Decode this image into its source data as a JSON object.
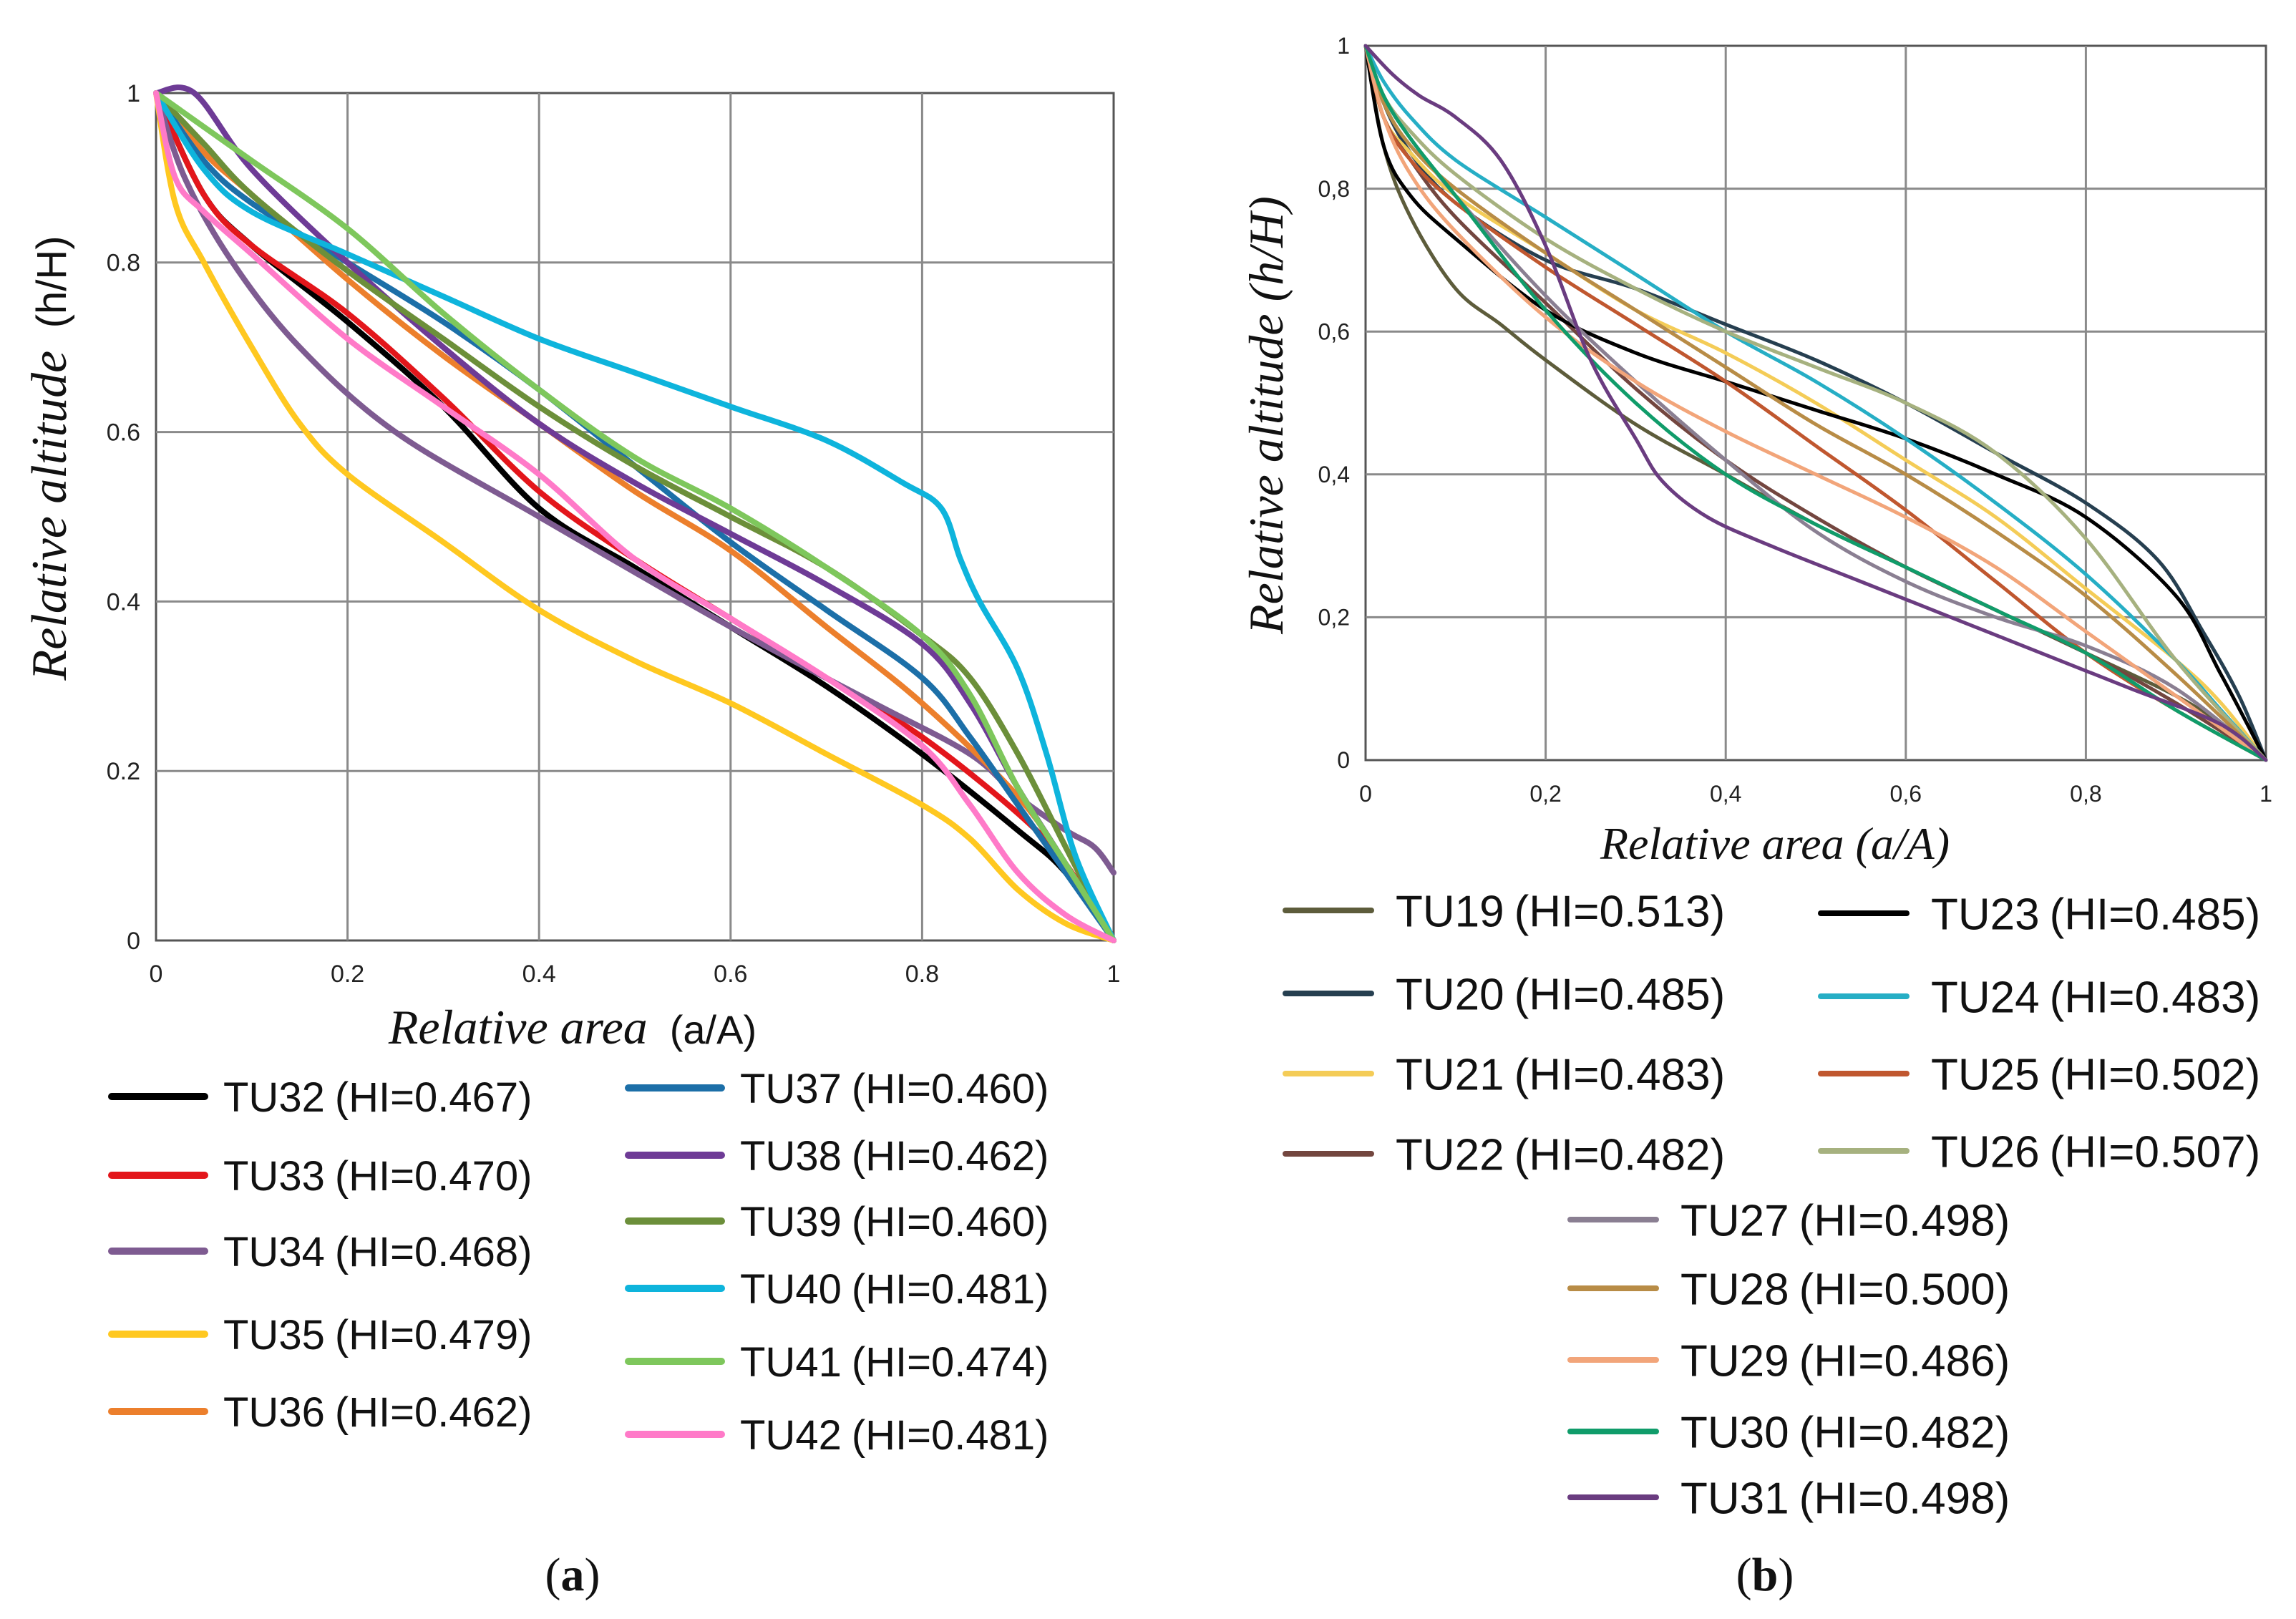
{
  "chart_data": [
    {
      "type": "line",
      "panel_label": "a",
      "xlabel_italic": "Relative area",
      "xlabel_unit": "(a/A)",
      "ylabel_italic": "Relative altitude",
      "ylabel_unit": "(h/H)",
      "xlim": [
        0,
        1
      ],
      "ylim": [
        0,
        1
      ],
      "xticks": [
        "0",
        "0.2",
        "0.4",
        "0.6",
        "0.8",
        "1"
      ],
      "yticks": [
        "0",
        "0.2",
        "0.4",
        "0.6",
        "0.8",
        "1"
      ],
      "grid": true,
      "legend_placement": "bottom",
      "series": [
        {
          "name": "TU32",
          "hi": "(HI=0.467)",
          "color": "#000000",
          "x": [
            0,
            0.05,
            0.1,
            0.2,
            0.3,
            0.4,
            0.5,
            0.6,
            0.7,
            0.8,
            0.9,
            0.95,
            1
          ],
          "y": [
            1,
            0.88,
            0.82,
            0.73,
            0.63,
            0.51,
            0.44,
            0.37,
            0.3,
            0.22,
            0.13,
            0.08,
            0
          ]
        },
        {
          "name": "TU33",
          "hi": "(HI=0.470)",
          "color": "#e3161b",
          "x": [
            0,
            0.05,
            0.1,
            0.2,
            0.3,
            0.4,
            0.5,
            0.6,
            0.7,
            0.8,
            0.9,
            0.95,
            1
          ],
          "y": [
            1,
            0.88,
            0.82,
            0.74,
            0.64,
            0.53,
            0.45,
            0.38,
            0.31,
            0.24,
            0.15,
            0.09,
            0
          ]
        },
        {
          "name": "TU34",
          "hi": "(HI=0.468)",
          "color": "#7e5b91",
          "x": [
            0,
            0.03,
            0.08,
            0.15,
            0.25,
            0.4,
            0.6,
            0.75,
            0.85,
            0.9,
            0.95,
            0.98,
            1
          ],
          "y": [
            1,
            0.9,
            0.8,
            0.7,
            0.6,
            0.5,
            0.37,
            0.28,
            0.22,
            0.17,
            0.13,
            0.11,
            0.08
          ]
        },
        {
          "name": "TU35",
          "hi": "(HI=0.479)",
          "color": "#ffc820",
          "x": [
            0,
            0.02,
            0.05,
            0.1,
            0.15,
            0.2,
            0.3,
            0.4,
            0.5,
            0.6,
            0.7,
            0.8,
            0.85,
            0.9,
            0.95,
            1
          ],
          "y": [
            1,
            0.87,
            0.8,
            0.7,
            0.61,
            0.55,
            0.47,
            0.39,
            0.33,
            0.28,
            0.22,
            0.16,
            0.12,
            0.06,
            0.02,
            0
          ]
        },
        {
          "name": "TU36",
          "hi": "(HI=0.462)",
          "color": "#ec7f2c",
          "x": [
            0,
            0.05,
            0.1,
            0.2,
            0.3,
            0.4,
            0.5,
            0.6,
            0.7,
            0.8,
            0.9,
            0.95,
            1
          ],
          "y": [
            1,
            0.93,
            0.88,
            0.78,
            0.69,
            0.61,
            0.53,
            0.46,
            0.37,
            0.28,
            0.17,
            0.09,
            0
          ]
        },
        {
          "name": "TU37",
          "hi": "(HI=0.460)",
          "color": "#1c6fa8",
          "x": [
            0,
            0.05,
            0.1,
            0.2,
            0.3,
            0.4,
            0.5,
            0.6,
            0.7,
            0.8,
            0.85,
            0.9,
            0.95,
            1
          ],
          "y": [
            1,
            0.92,
            0.87,
            0.8,
            0.73,
            0.65,
            0.56,
            0.47,
            0.39,
            0.31,
            0.24,
            0.16,
            0.08,
            0
          ]
        },
        {
          "name": "TU38",
          "hi": "(HI=0.462)",
          "color": "#6e3b96",
          "x": [
            0,
            0.04,
            0.1,
            0.2,
            0.3,
            0.4,
            0.5,
            0.6,
            0.7,
            0.8,
            0.85,
            0.9,
            0.95,
            1
          ],
          "y": [
            1,
            1,
            0.91,
            0.8,
            0.7,
            0.61,
            0.54,
            0.48,
            0.42,
            0.35,
            0.28,
            0.18,
            0.09,
            0
          ]
        },
        {
          "name": "TU39",
          "hi": "(HI=0.460)",
          "color": "#6c8f3a",
          "x": [
            0,
            0.05,
            0.1,
            0.2,
            0.3,
            0.4,
            0.5,
            0.6,
            0.7,
            0.8,
            0.85,
            0.9,
            0.95,
            1
          ],
          "y": [
            1,
            0.94,
            0.88,
            0.79,
            0.71,
            0.63,
            0.56,
            0.5,
            0.44,
            0.36,
            0.31,
            0.22,
            0.11,
            0
          ]
        },
        {
          "name": "TU40",
          "hi": "(HI=0.481)",
          "color": "#0eb4dc",
          "x": [
            0,
            0.05,
            0.1,
            0.2,
            0.3,
            0.4,
            0.5,
            0.6,
            0.7,
            0.78,
            0.82,
            0.84,
            0.86,
            0.9,
            0.93,
            0.96,
            1
          ],
          "y": [
            1,
            0.91,
            0.86,
            0.81,
            0.76,
            0.71,
            0.67,
            0.63,
            0.59,
            0.54,
            0.51,
            0.45,
            0.4,
            0.32,
            0.22,
            0.1,
            0
          ]
        },
        {
          "name": "TU41",
          "hi": "(HI=0.474)",
          "color": "#7ec75c",
          "x": [
            0,
            0.05,
            0.1,
            0.2,
            0.3,
            0.4,
            0.5,
            0.6,
            0.7,
            0.8,
            0.85,
            0.9,
            0.95,
            1
          ],
          "y": [
            1,
            0.96,
            0.92,
            0.84,
            0.74,
            0.65,
            0.57,
            0.51,
            0.44,
            0.36,
            0.29,
            0.18,
            0.09,
            0
          ]
        },
        {
          "name": "TU42",
          "hi": "(HI=0.481)",
          "color": "#ff7ac8",
          "x": [
            0,
            0.02,
            0.05,
            0.1,
            0.2,
            0.3,
            0.4,
            0.5,
            0.6,
            0.7,
            0.8,
            0.85,
            0.9,
            0.95,
            1
          ],
          "y": [
            1,
            0.9,
            0.86,
            0.81,
            0.71,
            0.63,
            0.55,
            0.45,
            0.38,
            0.31,
            0.23,
            0.16,
            0.08,
            0.03,
            0
          ]
        }
      ]
    },
    {
      "type": "line",
      "panel_label": "b",
      "xlabel_italic": "Relative area (a/A)",
      "xlabel_unit": "",
      "ylabel_italic": "Relative altitude (h/H)",
      "ylabel_unit": "",
      "xlim": [
        0,
        1
      ],
      "ylim": [
        0,
        1
      ],
      "xticks": [
        "0",
        "0,2",
        "0,4",
        "0,6",
        "0,8",
        "1"
      ],
      "yticks": [
        "0",
        "0,2",
        "0,4",
        "0,6",
        "0,8",
        "1"
      ],
      "grid": true,
      "legend_placement": "bottom",
      "series": [
        {
          "name": "TU19",
          "hi": "(HI=0.513)",
          "color": "#5d5c3b",
          "x": [
            0,
            0.02,
            0.05,
            0.1,
            0.15,
            0.2,
            0.3,
            0.4,
            0.5,
            0.6,
            0.7,
            0.8,
            0.9,
            0.95,
            1
          ],
          "y": [
            1,
            0.86,
            0.76,
            0.66,
            0.61,
            0.56,
            0.47,
            0.4,
            0.33,
            0.27,
            0.21,
            0.15,
            0.09,
            0.05,
            0
          ]
        },
        {
          "name": "TU20",
          "hi": "(HI=0.485)",
          "color": "#263f50",
          "x": [
            0,
            0.02,
            0.05,
            0.1,
            0.2,
            0.3,
            0.4,
            0.5,
            0.6,
            0.7,
            0.8,
            0.88,
            0.93,
            0.97,
            1
          ],
          "y": [
            1,
            0.92,
            0.85,
            0.78,
            0.7,
            0.66,
            0.61,
            0.56,
            0.5,
            0.43,
            0.36,
            0.28,
            0.18,
            0.09,
            0
          ]
        },
        {
          "name": "TU21",
          "hi": "(HI=0.483)",
          "color": "#f4cc57",
          "x": [
            0,
            0.02,
            0.05,
            0.1,
            0.2,
            0.3,
            0.4,
            0.5,
            0.6,
            0.7,
            0.8,
            0.9,
            0.95,
            1
          ],
          "y": [
            1,
            0.9,
            0.85,
            0.79,
            0.71,
            0.63,
            0.57,
            0.5,
            0.42,
            0.34,
            0.24,
            0.14,
            0.08,
            0
          ]
        },
        {
          "name": "TU22",
          "hi": "(HI=0.482)",
          "color": "#73463f",
          "x": [
            0,
            0.02,
            0.05,
            0.1,
            0.2,
            0.3,
            0.4,
            0.5,
            0.6,
            0.7,
            0.8,
            0.9,
            1
          ],
          "y": [
            1,
            0.9,
            0.84,
            0.76,
            0.64,
            0.52,
            0.42,
            0.34,
            0.27,
            0.21,
            0.15,
            0.08,
            0
          ]
        },
        {
          "name": "TU23",
          "hi": "(HI=0.485)",
          "color": "#000000",
          "x": [
            0,
            0.02,
            0.05,
            0.1,
            0.2,
            0.3,
            0.4,
            0.5,
            0.6,
            0.7,
            0.8,
            0.9,
            0.95,
            1
          ],
          "y": [
            1,
            0.86,
            0.79,
            0.73,
            0.63,
            0.57,
            0.53,
            0.49,
            0.45,
            0.4,
            0.34,
            0.23,
            0.12,
            0
          ]
        },
        {
          "name": "TU24",
          "hi": "(HI=0.483)",
          "color": "#26aec5",
          "x": [
            0,
            0.02,
            0.05,
            0.1,
            0.2,
            0.3,
            0.4,
            0.5,
            0.6,
            0.7,
            0.8,
            0.9,
            0.95,
            1
          ],
          "y": [
            1,
            0.95,
            0.9,
            0.84,
            0.76,
            0.68,
            0.6,
            0.53,
            0.45,
            0.36,
            0.26,
            0.14,
            0.07,
            0
          ]
        },
        {
          "name": "TU25",
          "hi": "(HI=0.502)",
          "color": "#c0572f",
          "x": [
            0,
            0.02,
            0.05,
            0.1,
            0.2,
            0.3,
            0.4,
            0.5,
            0.6,
            0.7,
            0.8,
            0.9,
            1
          ],
          "y": [
            1,
            0.9,
            0.84,
            0.78,
            0.69,
            0.61,
            0.53,
            0.44,
            0.35,
            0.25,
            0.15,
            0.07,
            0
          ]
        },
        {
          "name": "TU26",
          "hi": "(HI=0.507)",
          "color": "#a6b17f",
          "x": [
            0,
            0.02,
            0.05,
            0.1,
            0.2,
            0.3,
            0.4,
            0.5,
            0.6,
            0.7,
            0.8,
            0.9,
            1
          ],
          "y": [
            1,
            0.93,
            0.88,
            0.82,
            0.73,
            0.66,
            0.6,
            0.55,
            0.5,
            0.43,
            0.31,
            0.14,
            0
          ]
        },
        {
          "name": "TU27",
          "hi": "(HI=0.498)",
          "color": "#8a7f92",
          "x": [
            0,
            0.02,
            0.05,
            0.1,
            0.2,
            0.3,
            0.4,
            0.5,
            0.6,
            0.7,
            0.8,
            0.9,
            1
          ],
          "y": [
            1,
            0.93,
            0.87,
            0.79,
            0.65,
            0.53,
            0.42,
            0.32,
            0.25,
            0.2,
            0.16,
            0.1,
            0
          ]
        },
        {
          "name": "TU28",
          "hi": "(HI=0.500)",
          "color": "#b88c46",
          "x": [
            0,
            0.02,
            0.05,
            0.1,
            0.2,
            0.3,
            0.4,
            0.5,
            0.6,
            0.7,
            0.8,
            0.9,
            1
          ],
          "y": [
            1,
            0.92,
            0.86,
            0.8,
            0.71,
            0.63,
            0.55,
            0.47,
            0.4,
            0.32,
            0.23,
            0.12,
            0
          ]
        },
        {
          "name": "TU29",
          "hi": "(HI=0.486)",
          "color": "#f2a57a",
          "x": [
            0,
            0.02,
            0.05,
            0.1,
            0.2,
            0.3,
            0.4,
            0.5,
            0.6,
            0.7,
            0.8,
            0.9,
            1
          ],
          "y": [
            1,
            0.9,
            0.82,
            0.74,
            0.62,
            0.53,
            0.46,
            0.4,
            0.34,
            0.27,
            0.18,
            0.09,
            0
          ]
        },
        {
          "name": "TU30",
          "hi": "(HI=0.482)",
          "color": "#109c6a",
          "x": [
            0,
            0.02,
            0.05,
            0.1,
            0.2,
            0.3,
            0.4,
            0.5,
            0.6,
            0.7,
            0.8,
            0.9,
            1
          ],
          "y": [
            1,
            0.93,
            0.87,
            0.79,
            0.63,
            0.5,
            0.4,
            0.33,
            0.27,
            0.21,
            0.15,
            0.07,
            0
          ]
        },
        {
          "name": "TU31",
          "hi": "(HI=0.498)",
          "color": "#6a3c80",
          "x": [
            0,
            0.03,
            0.06,
            0.1,
            0.15,
            0.2,
            0.25,
            0.3,
            0.33,
            0.38,
            0.45,
            0.55,
            0.65,
            0.75,
            0.85,
            0.95,
            1
          ],
          "y": [
            1,
            0.96,
            0.93,
            0.9,
            0.84,
            0.72,
            0.56,
            0.45,
            0.39,
            0.34,
            0.3,
            0.25,
            0.2,
            0.15,
            0.1,
            0.05,
            0
          ]
        }
      ]
    }
  ]
}
